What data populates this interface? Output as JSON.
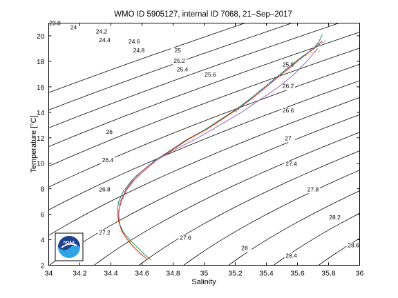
{
  "chart_data": {
    "type": "line",
    "title": "WMO ID 5905127, internal ID 7068, 21–Sep–2017",
    "xlabel": "Salinity",
    "ylabel": "Temperature [°C]",
    "xlim": [
      34,
      36
    ],
    "ylim": [
      2,
      21
    ],
    "x_ticks": [
      "34",
      "34.2",
      "34.4",
      "34.6",
      "34.8",
      "35",
      "35.2",
      "35.4",
      "35.6",
      "35.8",
      "36"
    ],
    "y_ticks": [
      "2",
      "4",
      "6",
      "8",
      "10",
      "12",
      "14",
      "16",
      "18",
      "20"
    ],
    "grid": false,
    "legend": "none",
    "density_contours": {
      "labels": [
        {
          "text": "23.8",
          "s": 34.04,
          "t": 20.85
        },
        {
          "text": "24",
          "s": 34.16,
          "t": 20.5
        },
        {
          "text": "24.2",
          "s": 34.34,
          "t": 20.2
        },
        {
          "text": "24.4",
          "s": 34.36,
          "t": 19.5
        },
        {
          "text": "24.6",
          "s": 34.55,
          "t": 19.4
        },
        {
          "text": "24.8",
          "s": 34.58,
          "t": 18.7
        },
        {
          "text": "25",
          "s": 34.83,
          "t": 18.7
        },
        {
          "text": "25.2",
          "s": 34.84,
          "t": 17.9
        },
        {
          "text": "25.4",
          "s": 34.86,
          "t": 17.2
        },
        {
          "text": "25.6",
          "s": 35.04,
          "t": 16.8
        },
        {
          "text": "25.8",
          "s": 35.54,
          "t": 17.6
        },
        {
          "text": "26.2",
          "s": 35.54,
          "t": 15.9
        },
        {
          "text": "26.6",
          "s": 35.54,
          "t": 14.0
        },
        {
          "text": "27",
          "s": 35.54,
          "t": 11.8
        },
        {
          "text": "27.4",
          "s": 35.56,
          "t": 9.8
        },
        {
          "text": "27.8",
          "s": 35.7,
          "t": 7.8
        },
        {
          "text": "28.2",
          "s": 35.84,
          "t": 5.6
        },
        {
          "text": "28.6",
          "s": 35.96,
          "t": 3.4
        },
        {
          "text": "28.4",
          "s": 35.56,
          "t": 2.6
        },
        {
          "text": "28",
          "s": 35.26,
          "t": 3.2
        },
        {
          "text": "27.6",
          "s": 34.88,
          "t": 4.0
        },
        {
          "text": "27.2",
          "s": 34.36,
          "t": 4.4
        },
        {
          "text": "26.8",
          "s": 34.36,
          "t": 7.8
        },
        {
          "text": "26.4",
          "s": 34.38,
          "t": 10.1
        },
        {
          "text": "26",
          "s": 34.39,
          "t": 12.3
        }
      ]
    },
    "series": [
      {
        "color": "#2e8b57",
        "x": [
          34.66,
          34.62,
          34.57,
          34.52,
          34.48,
          34.45,
          34.44,
          34.45,
          34.48,
          34.53,
          34.6,
          34.68,
          34.78,
          34.88,
          35.0,
          35.1,
          35.2,
          35.29,
          35.37,
          35.44,
          35.51,
          35.57,
          35.62,
          35.67,
          35.71,
          35.74,
          35.76
        ],
        "y": [
          2.4,
          2.8,
          3.4,
          4.0,
          4.6,
          5.4,
          6.2,
          7.0,
          7.8,
          8.6,
          9.4,
          10.2,
          11.0,
          11.8,
          12.6,
          13.4,
          14.2,
          15.0,
          15.8,
          16.5,
          17.2,
          17.8,
          18.3,
          18.7,
          19.1,
          19.6,
          20.1
        ]
      },
      {
        "color": "#e8a317",
        "x": [
          34.64,
          34.6,
          34.55,
          34.51,
          34.47,
          34.45,
          34.45,
          34.46,
          34.49,
          34.54,
          34.61,
          34.69,
          34.79,
          34.89,
          35.01,
          35.11,
          35.21,
          35.3,
          35.38,
          35.45,
          35.52,
          35.58,
          35.63,
          35.68,
          35.72,
          35.75
        ],
        "y": [
          2.4,
          2.8,
          3.4,
          4.0,
          4.6,
          5.4,
          6.2,
          7.0,
          7.8,
          8.6,
          9.4,
          10.2,
          11.0,
          11.8,
          12.6,
          13.4,
          14.2,
          15.0,
          15.8,
          16.5,
          17.2,
          17.8,
          18.3,
          18.6,
          18.8,
          18.8
        ]
      },
      {
        "color": "#d62728",
        "x": [
          34.63,
          34.59,
          34.54,
          34.5,
          34.47,
          34.45,
          34.45,
          34.47,
          34.5,
          34.55,
          34.62,
          34.7,
          34.8,
          34.9,
          35.02,
          35.12,
          35.22,
          35.31,
          35.39,
          35.46,
          35.53,
          35.59,
          35.64,
          35.69,
          35.73,
          35.76
        ],
        "y": [
          2.5,
          2.9,
          3.5,
          4.1,
          4.7,
          5.5,
          6.3,
          7.1,
          7.9,
          8.7,
          9.5,
          10.3,
          11.1,
          11.9,
          12.7,
          13.5,
          14.3,
          15.1,
          15.9,
          16.6,
          17.3,
          17.9,
          18.4,
          18.9,
          19.3,
          19.6
        ]
      },
      {
        "color": "#1f77b4",
        "x": [
          35.2,
          35.27,
          35.35,
          35.42,
          35.49,
          35.55,
          35.61,
          35.66,
          35.71,
          35.75,
          35.78
        ],
        "y": [
          14.0,
          14.8,
          15.6,
          16.3,
          17.0,
          17.6,
          18.1,
          18.6,
          19.0,
          19.4,
          19.6
        ]
      },
      {
        "color": "#9467bd",
        "x": [
          34.46,
          34.45,
          34.46,
          34.5,
          34.56,
          34.66,
          34.8,
          34.96,
          35.1,
          35.24,
          35.36,
          35.48,
          35.58,
          35.66,
          35.73
        ],
        "y": [
          5.0,
          6.0,
          7.0,
          8.0,
          9.0,
          10.0,
          11.0,
          12.0,
          13.0,
          14.0,
          15.0,
          16.0,
          17.0,
          18.0,
          19.0
        ]
      }
    ]
  },
  "logo": {
    "text": "NOAA",
    "primary_color": "#1f3f8f",
    "accent_color": "#2fa3e6"
  }
}
